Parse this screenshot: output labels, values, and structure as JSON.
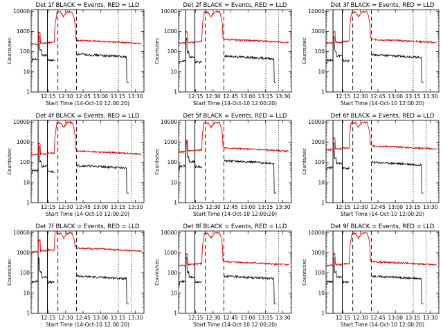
{
  "figure": {
    "xlabel": "Start Time (14-Oct-10 12:00:20)",
    "ylabel": "Counts/sec"
  },
  "chart_data": {
    "type": "line",
    "yscale": "log",
    "ylim": [
      1,
      12000
    ],
    "xlim_minutes": [
      0,
      97
    ],
    "x_tick_labels": [
      "12:15",
      "12:30",
      "12:45",
      "13:00",
      "13:15",
      "13:30"
    ],
    "y_tick_labels": [
      "1",
      "10",
      "100",
      "1000",
      "10000"
    ],
    "markers_solid_minutes": [
      6,
      14
    ],
    "markers_dashed_minutes": [
      23,
      39
    ],
    "markers_dotted_minutes": [
      75,
      86
    ],
    "series_colors": {
      "events": "#000000",
      "lld": "#dd0000"
    },
    "panels": [
      {
        "title": "Det 1f BLACK = Events, RED = LLD",
        "lld_base": 250,
        "events_base": 75
      },
      {
        "title": "Det 2f BLACK = Events, RED = LLD",
        "lld_base": 280,
        "events_base": 60
      },
      {
        "title": "Det 3f BLACK = Events, RED = LLD",
        "lld_base": 280,
        "events_base": 70
      },
      {
        "title": "Det 4f BLACK = Events, RED = LLD",
        "lld_base": 250,
        "events_base": 70
      },
      {
        "title": "Det 5f BLACK = Events, RED = LLD",
        "lld_base": 350,
        "events_base": 120
      },
      {
        "title": "Det 6f BLACK = Events, RED = LLD",
        "lld_base": 450,
        "events_base": 100
      },
      {
        "title": "Det 7f BLACK = Events, RED = LLD",
        "lld_base": 1200,
        "events_base": 70
      },
      {
        "title": "Det 8f BLACK = Events, RED = LLD",
        "lld_base": 250,
        "events_base": 70
      },
      {
        "title": "Det 9f BLACK = Events, RED = LLD",
        "lld_base": 250,
        "events_base": 70
      }
    ]
  }
}
